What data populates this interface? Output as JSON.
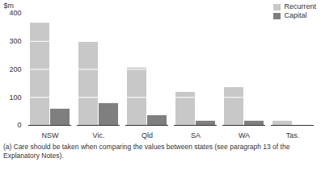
{
  "chart_data": {
    "type": "bar",
    "categories": [
      "NSW",
      "Vic.",
      "Qld",
      "SA",
      "WA",
      "Tas."
    ],
    "series": [
      {
        "name": "Recurrent",
        "color": "#c8c8c8",
        "values": [
          365,
          297,
          205,
          118,
          135,
          15
        ]
      },
      {
        "name": "Capital",
        "color": "#7f7f7f",
        "values": [
          58,
          78,
          35,
          15,
          15,
          0
        ]
      }
    ],
    "y_label": "$m",
    "ylim": [
      0,
      400
    ],
    "yticks": [
      0,
      100,
      200,
      300,
      400
    ],
    "grid": true,
    "legend": "top-right",
    "caption": "(a) Care should be taken when comparing the values between states (see paragraph 13 of the Explanatory Notes)."
  }
}
